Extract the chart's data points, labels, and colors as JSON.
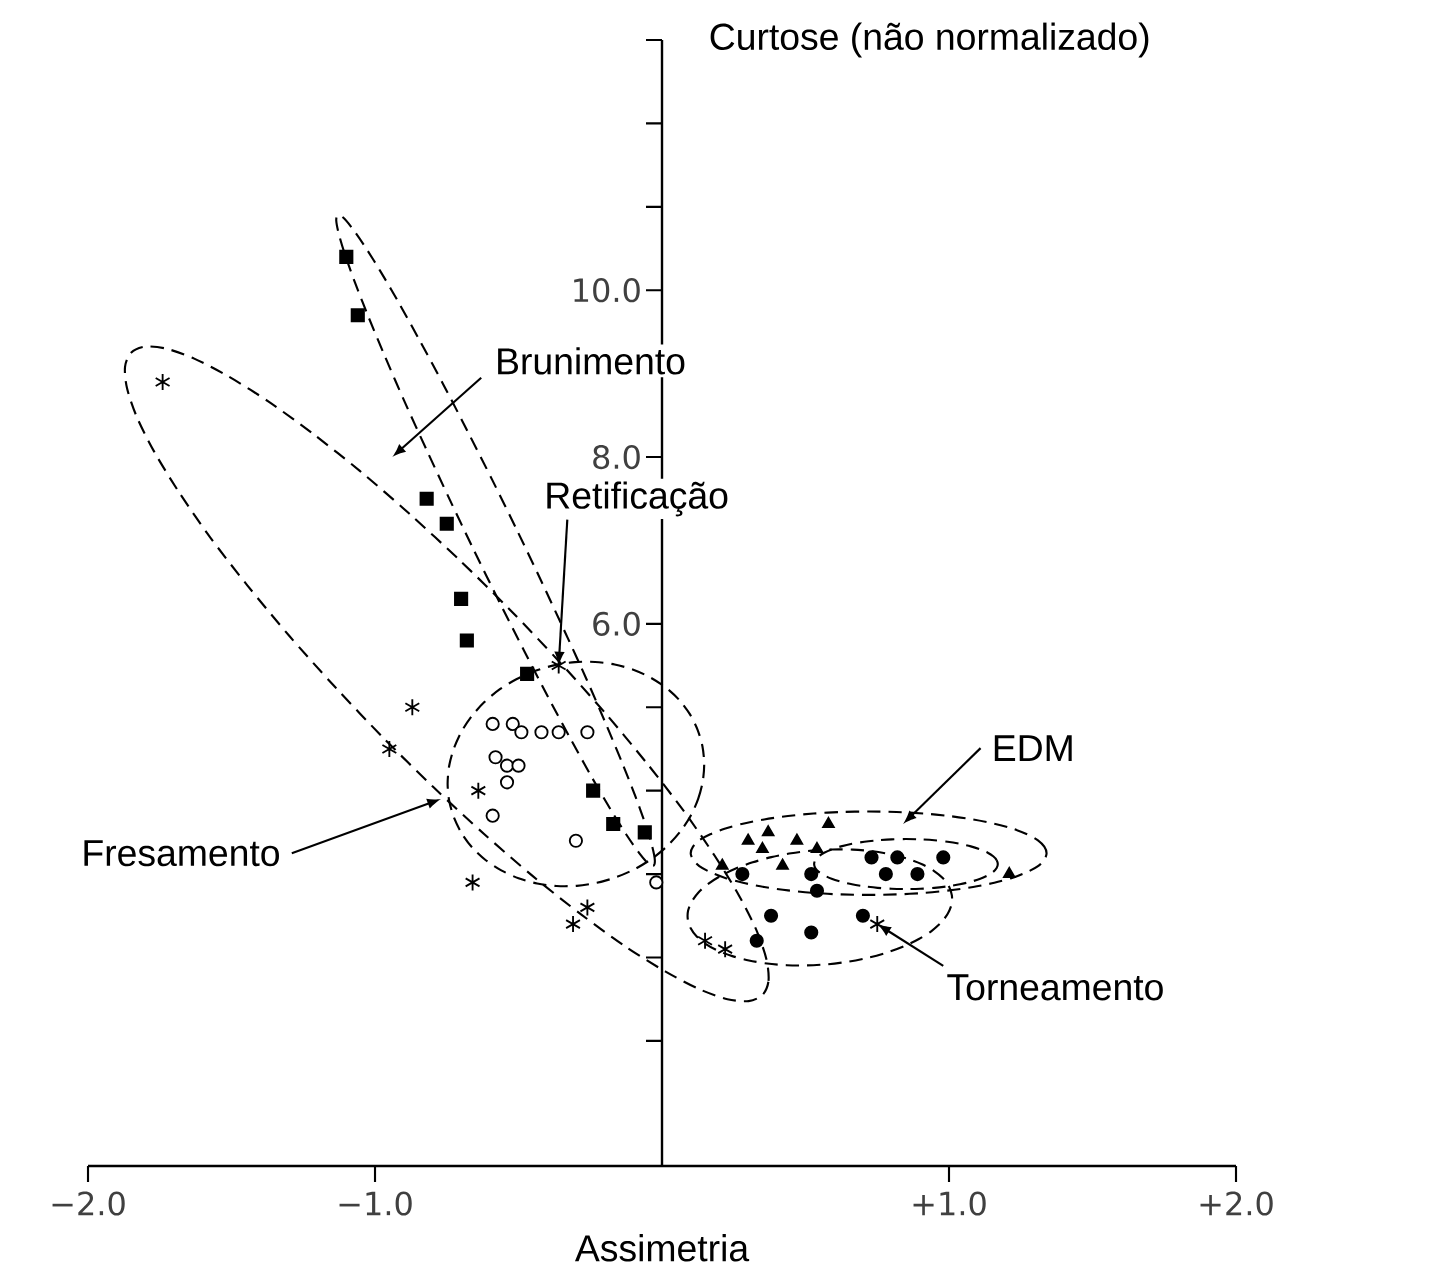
{
  "chart_data": {
    "type": "scatter",
    "xlabel": "Assimetria",
    "ylabel": "Curtose (não normalizado)",
    "xlim": [
      -2,
      2
    ],
    "ylim": [
      -0.5,
      13
    ],
    "xticks": [
      {
        "value": -2,
        "label": "−2.0"
      },
      {
        "value": -1,
        "label": "−1.0"
      },
      {
        "value": 1,
        "label": "+1.0"
      },
      {
        "value": 2,
        "label": "+2.0"
      }
    ],
    "yticks": [
      {
        "value": 1,
        "label": null
      },
      {
        "value": 2,
        "label": null
      },
      {
        "value": 3,
        "label": null
      },
      {
        "value": 4,
        "label": null
      },
      {
        "value": 5,
        "label": null
      },
      {
        "value": 6,
        "label": "6.0"
      },
      {
        "value": 8,
        "label": "8.0"
      },
      {
        "value": 10,
        "label": "10.0"
      },
      {
        "value": 11,
        "label": null
      },
      {
        "value": 12,
        "label": null
      },
      {
        "value": 13,
        "label": null
      }
    ],
    "series": [
      {
        "color": "#000000",
        "marker": "square",
        "x": [
          -1.1,
          -1.06,
          -0.82,
          -0.75,
          -0.7,
          -0.68,
          -0.47,
          -0.24,
          -0.17,
          -0.06
        ],
        "values": [
          10.4,
          9.7,
          7.5,
          7.2,
          6.3,
          5.8,
          5.4,
          4.0,
          3.6,
          3.5
        ]
      },
      {
        "color": "#ffffff",
        "marker": "circle",
        "x": [
          -0.59,
          -0.52,
          -0.49,
          -0.42,
          -0.36,
          -0.26,
          -0.58,
          -0.54,
          -0.5,
          -0.54,
          -0.59,
          -0.3,
          -0.02
        ],
        "values": [
          4.8,
          4.8,
          4.7,
          4.7,
          4.7,
          4.7,
          4.4,
          4.3,
          4.3,
          4.1,
          3.7,
          3.4,
          2.9
        ]
      },
      {
        "color": "#000000",
        "marker": "cross",
        "x": [
          -1.74,
          -0.87,
          -0.95,
          -0.64,
          -0.66,
          -0.31,
          -0.26,
          -0.36,
          0.15,
          0.22,
          0.75
        ],
        "values": [
          8.9,
          5.0,
          4.5,
          4.0,
          2.9,
          2.4,
          2.6,
          5.5,
          2.2,
          2.1,
          2.4
        ]
      },
      {
        "color": "#000000",
        "marker": "triangle",
        "x": [
          0.3,
          0.37,
          0.47,
          0.54,
          0.58,
          0.21,
          0.35,
          0.42,
          1.21
        ],
        "values": [
          3.4,
          3.5,
          3.4,
          3.3,
          3.6,
          3.1,
          3.3,
          3.1,
          3.0
        ]
      },
      {
        "color": "#000000",
        "marker": "circle",
        "x": [
          0.73,
          0.82,
          0.98,
          0.78,
          0.89,
          0.28,
          0.52,
          0.38,
          0.52,
          0.33,
          0.7,
          0.54
        ],
        "values": [
          3.2,
          3.2,
          3.2,
          3.0,
          3.0,
          3.0,
          3.0,
          2.5,
          2.3,
          2.2,
          2.5,
          2.8
        ]
      }
    ],
    "annotations": [
      "Brunimento",
      {
        "text": "Retificação",
        "x": -0.36,
        "y": 5.5
      },
      "Fresamento",
      "EDM",
      {
        "text": "Torneamento",
        "x": 0.75,
        "y": 2.4
      }
    ]
  }
}
